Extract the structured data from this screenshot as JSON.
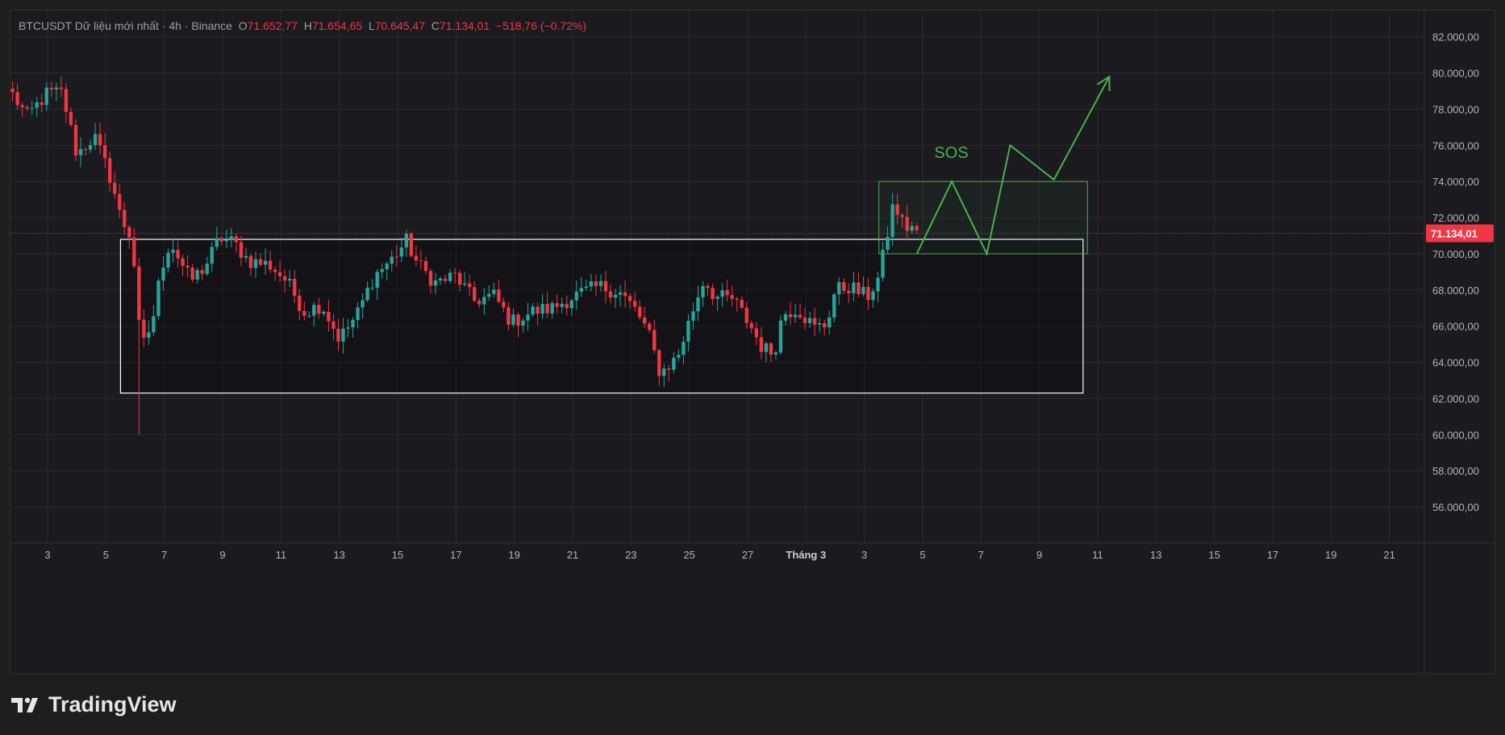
{
  "header": {
    "symbol": "BTCUSDT",
    "source_text": "Dữ liệu mới nhất · 4h · Binance",
    "open_label": "O",
    "open": "71.652,77",
    "high_label": "H",
    "high": "71.654,65",
    "low_label": "L",
    "low": "70.645,47",
    "close_label": "C",
    "close": "71.134,01",
    "change": "−518,76 (−0.72%)"
  },
  "brand": {
    "name": "TradingView",
    "icon": "tradingview-logo-icon"
  },
  "colors": {
    "up": "#26a69a",
    "down": "#f23645",
    "annotation": "#4caf50",
    "range_box": "#ffffff",
    "price_tag": "#f23645",
    "background": "#1a1a1f"
  },
  "chart_data": {
    "type": "candlestick",
    "title": "",
    "y_range": [
      54000,
      83500
    ],
    "y_ticks": [
      "82.000,00",
      "80.000,00",
      "78.000,00",
      "76.000,00",
      "74.000,00",
      "72.000,00",
      "70.000,00",
      "68.000,00",
      "66.000,00",
      "64.000,00",
      "62.000,00",
      "60.000,00",
      "58.000,00",
      "56.000,00"
    ],
    "y_tick_values": [
      82000,
      80000,
      78000,
      76000,
      74000,
      72000,
      70000,
      68000,
      66000,
      64000,
      62000,
      60000,
      58000,
      56000
    ],
    "x_ticks": [
      "3",
      "5",
      "7",
      "9",
      "11",
      "13",
      "15",
      "17",
      "19",
      "21",
      "23",
      "25",
      "27",
      "Tháng 3",
      "3",
      "5",
      "7",
      "9",
      "11",
      "13",
      "15",
      "17",
      "19",
      "21"
    ],
    "x_tick_days": [
      3,
      5,
      7,
      9,
      11,
      13,
      15,
      17,
      19,
      21,
      23,
      25,
      27,
      29,
      31,
      33,
      35,
      37,
      39,
      41,
      43,
      45,
      47,
      49
    ],
    "x_range_days": [
      1.7,
      50.2
    ],
    "last_price": 71134.01,
    "last_price_label": "71.134,01",
    "series_anchors": [
      [
        1.8,
        78800
      ],
      [
        2.3,
        77600
      ],
      [
        3.0,
        78900
      ],
      [
        3.5,
        78900
      ],
      [
        4.0,
        75500
      ],
      [
        4.6,
        76500
      ],
      [
        5.2,
        74000
      ],
      [
        5.5,
        72000
      ],
      [
        5.9,
        70800
      ],
      [
        6.2,
        64600
      ],
      [
        6.6,
        66300
      ],
      [
        6.9,
        69200
      ],
      [
        7.2,
        70700
      ],
      [
        7.9,
        68500
      ],
      [
        8.4,
        69300
      ],
      [
        8.9,
        70900
      ],
      [
        9.4,
        70600
      ],
      [
        9.9,
        69600
      ],
      [
        10.6,
        69400
      ],
      [
        11.2,
        68500
      ],
      [
        11.8,
        66800
      ],
      [
        12.4,
        67200
      ],
      [
        13.0,
        65300
      ],
      [
        13.6,
        66600
      ],
      [
        14.2,
        68800
      ],
      [
        14.8,
        69700
      ],
      [
        15.3,
        70700
      ],
      [
        15.7,
        69400
      ],
      [
        16.3,
        68400
      ],
      [
        17.0,
        68800
      ],
      [
        17.6,
        67400
      ],
      [
        18.3,
        67700
      ],
      [
        18.9,
        66200
      ],
      [
        19.6,
        66800
      ],
      [
        20.3,
        67000
      ],
      [
        21.1,
        67700
      ],
      [
        21.9,
        68200
      ],
      [
        22.6,
        67900
      ],
      [
        23.2,
        66800
      ],
      [
        23.6,
        65600
      ],
      [
        24.0,
        63400
      ],
      [
        24.6,
        64300
      ],
      [
        25.1,
        66800
      ],
      [
        25.5,
        68600
      ],
      [
        25.9,
        67600
      ],
      [
        26.5,
        67500
      ],
      [
        27.1,
        66000
      ],
      [
        27.5,
        64800
      ],
      [
        27.9,
        64500
      ],
      [
        28.2,
        66700
      ],
      [
        28.7,
        67000
      ],
      [
        29.3,
        65900
      ],
      [
        29.7,
        66100
      ],
      [
        30.0,
        68000
      ],
      [
        30.5,
        68200
      ],
      [
        31.1,
        67600
      ],
      [
        31.5,
        68700
      ],
      [
        32.0,
        72800
      ],
      [
        32.4,
        71400
      ],
      [
        32.6,
        71600
      ],
      [
        32.8,
        71100
      ]
    ],
    "annotations": {
      "range_box": {
        "day_start": 5.5,
        "day_end": 38.5,
        "price_low": 62300,
        "price_high": 70800
      },
      "sos_box": {
        "day_start": 31.5,
        "day_end": 38.65,
        "price_low": 70000,
        "price_high": 74000
      },
      "sos_label": "SOS",
      "projection_path": [
        [
          32.8,
          70000
        ],
        [
          34.0,
          74000
        ],
        [
          35.2,
          70000
        ],
        [
          36.0,
          76000
        ],
        [
          37.5,
          74100
        ],
        [
          39.4,
          79800
        ]
      ]
    }
  }
}
